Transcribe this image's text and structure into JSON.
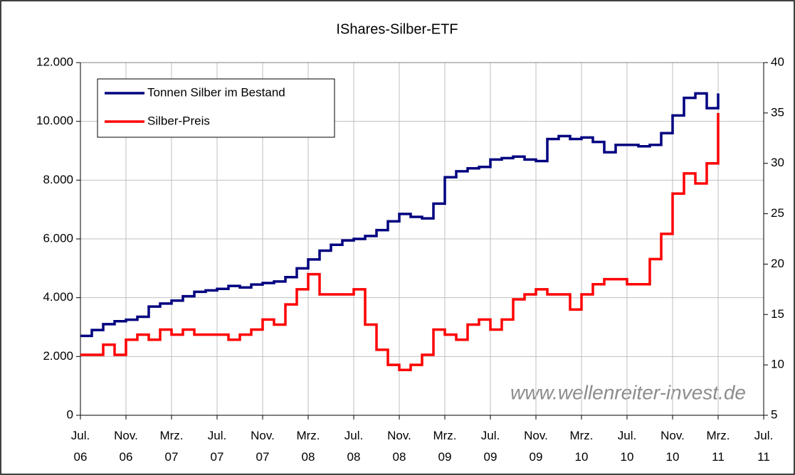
{
  "chart_data": {
    "type": "line",
    "title": "IShares-Silber-ETF",
    "x": [
      "2006-07",
      "2006-08",
      "2006-09",
      "2006-10",
      "2006-11",
      "2006-12",
      "2007-01",
      "2007-02",
      "2007-03",
      "2007-04",
      "2007-05",
      "2007-06",
      "2007-07",
      "2007-08",
      "2007-09",
      "2007-10",
      "2007-11",
      "2007-12",
      "2008-01",
      "2008-02",
      "2008-03",
      "2008-04",
      "2008-05",
      "2008-06",
      "2008-07",
      "2008-08",
      "2008-09",
      "2008-10",
      "2008-11",
      "2008-12",
      "2009-01",
      "2009-02",
      "2009-03",
      "2009-04",
      "2009-05",
      "2009-06",
      "2009-07",
      "2009-08",
      "2009-09",
      "2009-10",
      "2009-11",
      "2009-12",
      "2010-01",
      "2010-02",
      "2010-03",
      "2010-04",
      "2010-05",
      "2010-06",
      "2010-07",
      "2010-08",
      "2010-09",
      "2010-10",
      "2010-11",
      "2010-12",
      "2011-01",
      "2011-02",
      "2011-03"
    ],
    "series": [
      {
        "name": "Tonnen Silber im Bestand",
        "color": "#000080",
        "values": [
          2700,
          2900,
          3100,
          3200,
          3250,
          3350,
          3700,
          3800,
          3900,
          4050,
          4200,
          4250,
          4300,
          4400,
          4350,
          4450,
          4500,
          4550,
          4700,
          5000,
          5300,
          5600,
          5800,
          5950,
          6000,
          6100,
          6300,
          6600,
          6850,
          6750,
          6700,
          7200,
          8100,
          8300,
          8400,
          8450,
          8700,
          8750,
          8800,
          8700,
          8650,
          9400,
          9500,
          9400,
          9450,
          9300,
          8950,
          9200,
          9200,
          9150,
          9200,
          9600,
          10200,
          10800,
          10950,
          10450,
          10950
        ]
      },
      {
        "name": "Silber-Preis",
        "color": "#ff0000",
        "axis": "y2",
        "values": [
          11,
          11,
          12,
          11,
          12.5,
          13,
          12.5,
          13.5,
          13,
          13.5,
          13,
          13,
          13,
          12.5,
          13,
          13.5,
          14.5,
          14,
          16,
          17.5,
          19,
          17,
          17,
          17,
          17.5,
          14,
          11.5,
          10,
          9.5,
          10,
          11,
          13.5,
          13,
          12.5,
          14,
          14.5,
          13.5,
          14.5,
          16.5,
          17,
          17.5,
          17,
          17,
          15.5,
          17,
          18,
          18.5,
          18.5,
          18,
          18,
          20.5,
          23,
          27,
          29,
          28,
          30,
          35
        ]
      }
    ],
    "xlim": [
      "2006-07",
      "2011-07"
    ],
    "xticks": [
      {
        "value": "2006-07",
        "label": "Jul. 06"
      },
      {
        "value": "2006-11",
        "label": "Nov. 06"
      },
      {
        "value": "2007-03",
        "label": "Mrz. 07"
      },
      {
        "value": "2007-07",
        "label": "Jul. 07"
      },
      {
        "value": "2007-11",
        "label": "Nov. 07"
      },
      {
        "value": "2008-03",
        "label": "Mrz. 08"
      },
      {
        "value": "2008-07",
        "label": "Jul. 08"
      },
      {
        "value": "2008-11",
        "label": "Nov. 08"
      },
      {
        "value": "2009-03",
        "label": "Mrz. 09"
      },
      {
        "value": "2009-07",
        "label": "Jul. 09"
      },
      {
        "value": "2009-11",
        "label": "Nov. 09"
      },
      {
        "value": "2010-03",
        "label": "Mrz. 10"
      },
      {
        "value": "2010-07",
        "label": "Jul. 10"
      },
      {
        "value": "2010-11",
        "label": "Nov. 10"
      },
      {
        "value": "2011-03",
        "label": "Mrz. 11"
      },
      {
        "value": "2011-07",
        "label": "Jul. 11"
      }
    ],
    "ylim": [
      0,
      12000
    ],
    "yticks": [
      {
        "value": 0,
        "label": "0"
      },
      {
        "value": 2000,
        "label": "2.000"
      },
      {
        "value": 4000,
        "label": "4.000"
      },
      {
        "value": 6000,
        "label": "6.000"
      },
      {
        "value": 8000,
        "label": "8.000"
      },
      {
        "value": 10000,
        "label": "10.000"
      },
      {
        "value": 12000,
        "label": "12.000"
      }
    ],
    "y2lim": [
      5,
      40
    ],
    "y2ticks": [
      5,
      10,
      15,
      20,
      25,
      30,
      35,
      40
    ],
    "grid": true,
    "legend": "upper left",
    "annotation": "www.wellenreiter-invest.de"
  }
}
